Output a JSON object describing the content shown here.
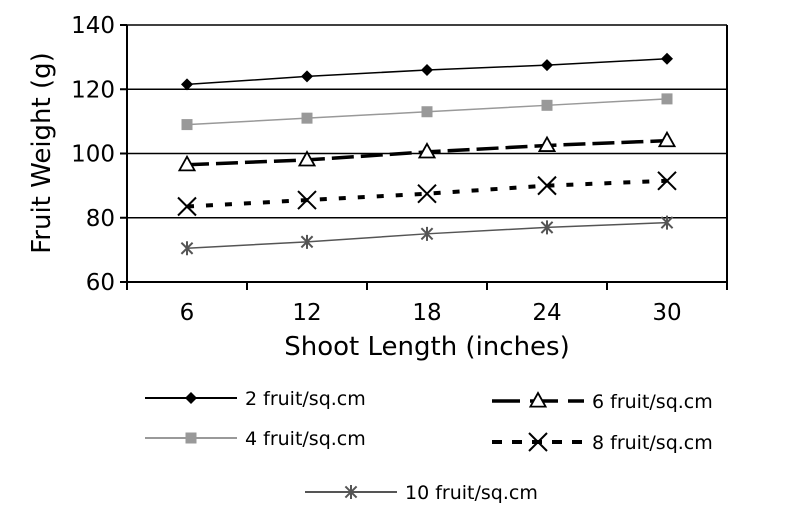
{
  "chart_data": {
    "type": "line",
    "title": "",
    "xlabel": "Shoot Length (inches)",
    "ylabel": "Fruit Weight (g)",
    "categories": [
      "6",
      "12",
      "18",
      "24",
      "30"
    ],
    "ylim": [
      60,
      140
    ],
    "yticks": [
      "60",
      "80",
      "100",
      "120",
      "140"
    ],
    "grid": "horizontal",
    "legend_position": "bottom",
    "series": [
      {
        "name": "2 fruit/sq.cm",
        "values": [
          121.5,
          124,
          126,
          127.5,
          129.5
        ],
        "color": "#000000",
        "marker": "diamond",
        "dash": "solid"
      },
      {
        "name": "4 fruit/sq.cm",
        "values": [
          109,
          111,
          113,
          115,
          117
        ],
        "color": "#999999",
        "marker": "square",
        "dash": "solid"
      },
      {
        "name": "6 fruit/sq.cm",
        "values": [
          96.5,
          98,
          100.5,
          102.5,
          104
        ],
        "color": "#000000",
        "marker": "triangle",
        "dash": "long-dash"
      },
      {
        "name": "8 fruit/sq.cm",
        "values": [
          83.5,
          85.5,
          87.5,
          90,
          91.5
        ],
        "color": "#000000",
        "marker": "x",
        "dash": "short-dash"
      },
      {
        "name": "10 fruit/sq.cm",
        "values": [
          70.5,
          72.5,
          75,
          77,
          78.5
        ],
        "color": "#555555",
        "marker": "asterisk",
        "dash": "solid"
      }
    ]
  }
}
